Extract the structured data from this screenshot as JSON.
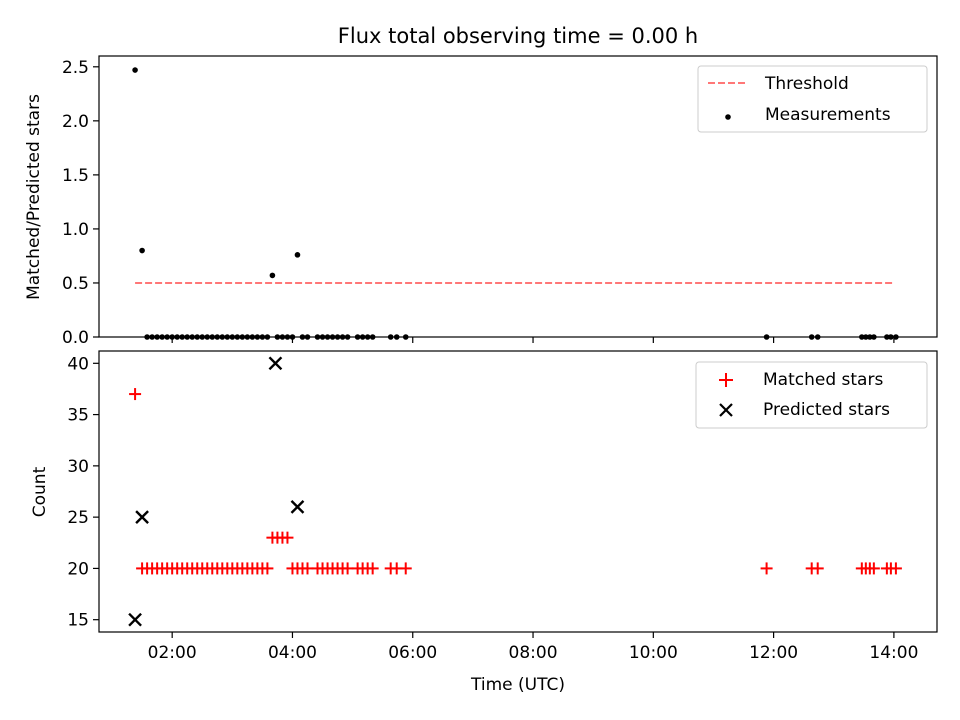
{
  "colors": {
    "threshold": "#ff7777",
    "measurements": "#000000",
    "matched": "#ff0000",
    "predicted": "#000000"
  },
  "chart_data": [
    {
      "type": "scatter",
      "title": "Flux total observing time = 0.00 h",
      "ylabel": "Matched/Predicted stars",
      "xlabel": "",
      "x_unit": "hours UTC",
      "xlim": [
        "00:47",
        "14:43"
      ],
      "ylim": [
        0,
        2.6
      ],
      "yticks": [
        0.0,
        0.5,
        1.0,
        1.5,
        2.0,
        2.5
      ],
      "ytick_labels": [
        "0.0",
        "0.5",
        "1.0",
        "1.5",
        "2.0",
        "2.5"
      ],
      "legend": {
        "position": "top-right",
        "entries": [
          "Threshold",
          "Measurements"
        ]
      },
      "series": [
        {
          "name": "Threshold",
          "kind": "dashed-line",
          "x": [
            "01:23",
            "14:00"
          ],
          "y": [
            0.5,
            0.5
          ]
        },
        {
          "name": "Measurements",
          "kind": "points",
          "x": [
            "01:23",
            "01:30",
            "01:35",
            "01:40",
            "01:45",
            "01:50",
            "01:55",
            "02:00",
            "02:05",
            "02:10",
            "02:15",
            "02:20",
            "02:25",
            "02:30",
            "02:35",
            "02:40",
            "02:45",
            "02:50",
            "02:55",
            "03:00",
            "03:05",
            "03:10",
            "03:15",
            "03:20",
            "03:25",
            "03:30",
            "03:35",
            "03:40",
            "03:45",
            "03:50",
            "03:55",
            "04:00",
            "04:05",
            "04:10",
            "04:15",
            "04:25",
            "04:30",
            "04:35",
            "04:40",
            "04:45",
            "04:50",
            "04:55",
            "05:05",
            "05:10",
            "05:15",
            "05:20",
            "05:38",
            "05:44",
            "05:53",
            "11:53",
            "12:38",
            "12:44",
            "13:28",
            "13:32",
            "13:36",
            "13:40",
            "13:53",
            "13:57",
            "14:02"
          ],
          "y": [
            2.47,
            0.8,
            0,
            0,
            0,
            0,
            0,
            0,
            0,
            0,
            0,
            0,
            0,
            0,
            0,
            0,
            0,
            0,
            0,
            0,
            0,
            0,
            0,
            0,
            0,
            0,
            0,
            0.57,
            0,
            0,
            0,
            0,
            0.76,
            0,
            0,
            0,
            0,
            0,
            0,
            0,
            0,
            0,
            0,
            0,
            0,
            0,
            0,
            0,
            0,
            0,
            0,
            0,
            0,
            0,
            0,
            0,
            0,
            0,
            0
          ]
        }
      ]
    },
    {
      "type": "scatter",
      "title": "",
      "xlabel": "Time (UTC)",
      "ylabel": "Count",
      "x_unit": "hours UTC",
      "xlim": [
        "00:47",
        "14:43"
      ],
      "ylim": [
        13.8,
        41.2
      ],
      "xticks": [
        "02:00",
        "04:00",
        "06:00",
        "08:00",
        "10:00",
        "12:00",
        "14:00"
      ],
      "yticks": [
        15,
        20,
        25,
        30,
        35,
        40
      ],
      "ytick_labels": [
        "15",
        "20",
        "25",
        "30",
        "35",
        "40"
      ],
      "legend": {
        "position": "top-right",
        "entries": [
          "Matched stars",
          "Predicted stars"
        ]
      },
      "series": [
        {
          "name": "Matched stars",
          "marker": "plus",
          "x": [
            "01:23",
            "01:30",
            "01:35",
            "01:40",
            "01:45",
            "01:50",
            "01:55",
            "02:00",
            "02:05",
            "02:10",
            "02:15",
            "02:20",
            "02:25",
            "02:30",
            "02:35",
            "02:40",
            "02:45",
            "02:50",
            "02:55",
            "03:00",
            "03:05",
            "03:10",
            "03:15",
            "03:20",
            "03:25",
            "03:30",
            "03:35",
            "03:40",
            "03:45",
            "03:50",
            "03:55",
            "04:00",
            "04:05",
            "04:10",
            "04:15",
            "04:25",
            "04:30",
            "04:35",
            "04:40",
            "04:45",
            "04:50",
            "04:55",
            "05:05",
            "05:10",
            "05:15",
            "05:20",
            "05:38",
            "05:44",
            "05:53",
            "11:53",
            "12:38",
            "12:44",
            "13:28",
            "13:32",
            "13:36",
            "13:40",
            "13:53",
            "13:57",
            "14:02"
          ],
          "y": [
            37,
            20,
            20,
            20,
            20,
            20,
            20,
            20,
            20,
            20,
            20,
            20,
            20,
            20,
            20,
            20,
            20,
            20,
            20,
            20,
            20,
            20,
            20,
            20,
            20,
            20,
            20,
            23,
            23,
            23,
            23,
            20,
            20,
            20,
            20,
            20,
            20,
            20,
            20,
            20,
            20,
            20,
            20,
            20,
            20,
            20,
            20,
            20,
            20,
            20,
            20,
            20,
            20,
            20,
            20,
            20,
            20,
            20,
            20
          ]
        },
        {
          "name": "Predicted stars",
          "marker": "cross",
          "x": [
            "01:23",
            "01:30",
            "03:43",
            "04:05"
          ],
          "y": [
            15,
            25,
            40,
            26
          ]
        }
      ]
    }
  ]
}
